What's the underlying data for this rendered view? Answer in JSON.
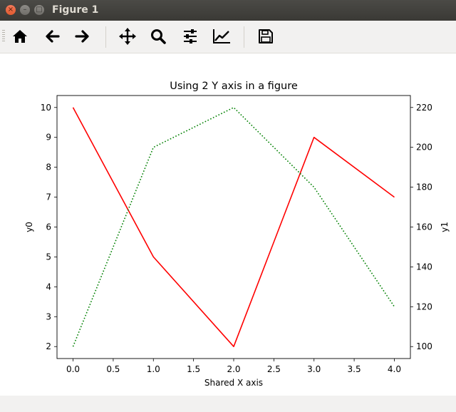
{
  "window": {
    "title": "Figure 1",
    "close_glyph": "×",
    "minimize_glyph": "–",
    "maximize_glyph": "□"
  },
  "toolbar": {
    "items": [
      {
        "name": "home-icon",
        "tooltip": "Home"
      },
      {
        "name": "back-arrow-icon",
        "tooltip": "Back"
      },
      {
        "name": "forward-arrow-icon",
        "tooltip": "Forward"
      },
      {
        "name": "pan-move-icon",
        "tooltip": "Pan"
      },
      {
        "name": "zoom-magnifier-icon",
        "tooltip": "Zoom"
      },
      {
        "name": "configure-subplots-icon",
        "tooltip": "Subplots"
      },
      {
        "name": "edit-axis-line-icon",
        "tooltip": "Customize"
      },
      {
        "name": "save-floppy-icon",
        "tooltip": "Save"
      }
    ]
  },
  "chart_data": {
    "type": "line",
    "title": "Using 2 Y axis in a figure",
    "xlabel": "Shared X axis",
    "ylabel_left": "y0",
    "ylabel_right": "y1",
    "x": [
      0,
      1,
      2,
      3,
      4
    ],
    "xlim": [
      -0.2,
      4.2
    ],
    "ylim_left": [
      1.6,
      10.4
    ],
    "ylim_right": [
      94,
      226
    ],
    "x_ticks": [
      "0.0",
      "0.5",
      "1.0",
      "1.5",
      "2.0",
      "2.5",
      "3.0",
      "3.5",
      "4.0"
    ],
    "y_left_ticks": [
      "2",
      "3",
      "4",
      "5",
      "6",
      "7",
      "8",
      "9",
      "10"
    ],
    "y_right_ticks": [
      "100",
      "120",
      "140",
      "160",
      "180",
      "200",
      "220"
    ],
    "series": [
      {
        "axis": "left",
        "color": "#ff0000",
        "style": "solid",
        "values": [
          10,
          5,
          2,
          9,
          7
        ]
      },
      {
        "axis": "right",
        "color": "#008000",
        "style": "dotted",
        "values": [
          100,
          200,
          220,
          180,
          120
        ]
      }
    ],
    "grid": false,
    "legend": "none"
  }
}
